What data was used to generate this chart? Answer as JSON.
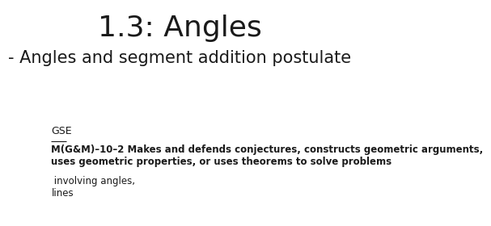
{
  "title": "1.3: Angles",
  "subtitle": "- Angles and segment addition postulate",
  "gse_label": "GSE",
  "body_bold": "M(G&M)–10–2 Makes and defends conjectures, constructs geometric arguments,\nuses geometric properties, or uses theorems to solve problems",
  "body_normal": " involving angles,\nlines",
  "background_color": "#ffffff",
  "title_fontsize": 26,
  "subtitle_fontsize": 15,
  "gse_fontsize": 9,
  "body_fontsize": 8.5
}
